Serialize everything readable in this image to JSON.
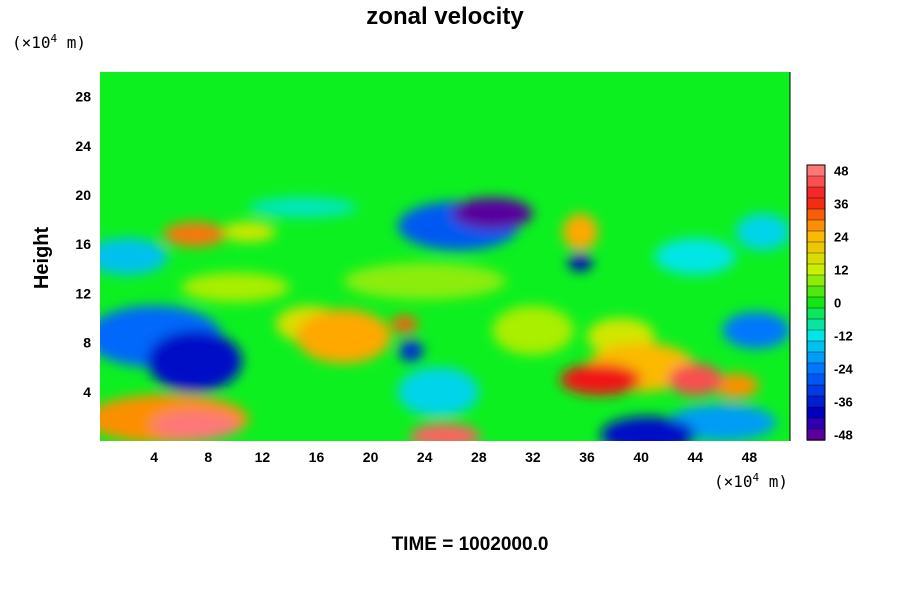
{
  "chart_data": {
    "type": "heatmap",
    "title": "zonal velocity",
    "ylabel": "Height",
    "xlabel": "",
    "x_unit_prefix": "(×10",
    "x_unit_exp": "4",
    "x_unit_suffix": " m)",
    "y_unit_prefix": "(×10",
    "y_unit_exp": "4",
    "y_unit_suffix": " m)",
    "xlim": [
      0,
      51
    ],
    "ylim": [
      0,
      30
    ],
    "x_ticks": [
      4,
      8,
      12,
      16,
      20,
      24,
      28,
      32,
      36,
      40,
      44,
      48
    ],
    "y_ticks": [
      4,
      8,
      12,
      16,
      20,
      24,
      28
    ],
    "colorbar": {
      "ticks": [
        48,
        36,
        24,
        12,
        0,
        -12,
        -24,
        -36,
        -48
      ],
      "range": [
        -50,
        50
      ],
      "levels": 25
    },
    "field_features": [
      {
        "kind": "jet",
        "x": 29,
        "y": 18.5,
        "rx": 3,
        "ry": 1.3,
        "value": -48
      },
      {
        "kind": "jet",
        "x": 26.5,
        "y": 17.5,
        "rx": 4.5,
        "ry": 2,
        "value": -28
      },
      {
        "kind": "jet",
        "x": 7,
        "y": 6.5,
        "rx": 3.5,
        "ry": 2.5,
        "value": -38
      },
      {
        "kind": "jet",
        "x": 4,
        "y": 8.5,
        "rx": 5,
        "ry": 2.5,
        "value": -26
      },
      {
        "kind": "jet",
        "x": 7,
        "y": 1.3,
        "rx": 3.2,
        "ry": 1.2,
        "value": 48
      },
      {
        "kind": "jet",
        "x": 5,
        "y": 1.8,
        "rx": 6,
        "ry": 2,
        "value": 28
      },
      {
        "kind": "jet",
        "x": 25.5,
        "y": 0.4,
        "rx": 2.6,
        "ry": 1,
        "value": 46
      },
      {
        "kind": "jet",
        "x": 18,
        "y": 8.5,
        "rx": 3.5,
        "ry": 2.2,
        "value": 26
      },
      {
        "kind": "jet",
        "x": 15.5,
        "y": 9.5,
        "rx": 2.5,
        "ry": 1.5,
        "value": 16
      },
      {
        "kind": "jet",
        "x": 22.5,
        "y": 9.5,
        "rx": 1,
        "ry": 0.7,
        "value": 32
      },
      {
        "kind": "jet",
        "x": 7,
        "y": 16.8,
        "rx": 2.3,
        "ry": 1,
        "value": 30
      },
      {
        "kind": "jet",
        "x": 11,
        "y": 17,
        "rx": 2,
        "ry": 0.8,
        "value": 14
      },
      {
        "kind": "jet",
        "x": 35.5,
        "y": 17,
        "rx": 1.3,
        "ry": 1.5,
        "value": 26
      },
      {
        "kind": "jet",
        "x": 35.5,
        "y": 14.5,
        "rx": 0.9,
        "ry": 0.7,
        "value": -40
      },
      {
        "kind": "jet",
        "x": 23,
        "y": 7.3,
        "rx": 0.9,
        "ry": 0.9,
        "value": -34
      },
      {
        "kind": "jet",
        "x": 37,
        "y": 5,
        "rx": 3,
        "ry": 1.3,
        "value": 38
      },
      {
        "kind": "jet",
        "x": 40,
        "y": 6,
        "rx": 4,
        "ry": 2,
        "value": 24
      },
      {
        "kind": "jet",
        "x": 44,
        "y": 5,
        "rx": 2,
        "ry": 1.3,
        "value": 44
      },
      {
        "kind": "jet",
        "x": 47,
        "y": 4.5,
        "rx": 1.7,
        "ry": 1,
        "value": 28
      },
      {
        "kind": "jet",
        "x": 38.5,
        "y": 8.5,
        "rx": 2.5,
        "ry": 1.5,
        "value": 14
      },
      {
        "kind": "jet",
        "x": 40.5,
        "y": 0.5,
        "rx": 3.5,
        "ry": 1.5,
        "value": -38
      },
      {
        "kind": "jet",
        "x": 46,
        "y": 1.5,
        "rx": 4,
        "ry": 1.5,
        "value": -20
      },
      {
        "kind": "jet",
        "x": 48.5,
        "y": 9,
        "rx": 2.5,
        "ry": 1.5,
        "value": -24
      },
      {
        "kind": "jet",
        "x": 25,
        "y": 4,
        "rx": 3,
        "ry": 2,
        "value": -14
      },
      {
        "kind": "jet",
        "x": 10,
        "y": 12.5,
        "rx": 4,
        "ry": 1.2,
        "value": 10
      },
      {
        "kind": "jet",
        "x": 24,
        "y": 13,
        "rx": 6,
        "ry": 1.5,
        "value": 8
      },
      {
        "kind": "jet",
        "x": 32,
        "y": 9,
        "rx": 3,
        "ry": 2,
        "value": 10
      },
      {
        "kind": "jet",
        "x": 2,
        "y": 15,
        "rx": 3,
        "ry": 1.5,
        "value": -16
      },
      {
        "kind": "jet",
        "x": 44,
        "y": 15,
        "rx": 3,
        "ry": 1.5,
        "value": -12
      },
      {
        "kind": "jet",
        "x": 15,
        "y": 19,
        "rx": 4,
        "ry": 0.8,
        "value": -10
      },
      {
        "kind": "jet",
        "x": 49,
        "y": 17,
        "rx": 2,
        "ry": 1.5,
        "value": -14
      }
    ]
  },
  "footer": {
    "time_label": "TIME = 1002000.0"
  }
}
